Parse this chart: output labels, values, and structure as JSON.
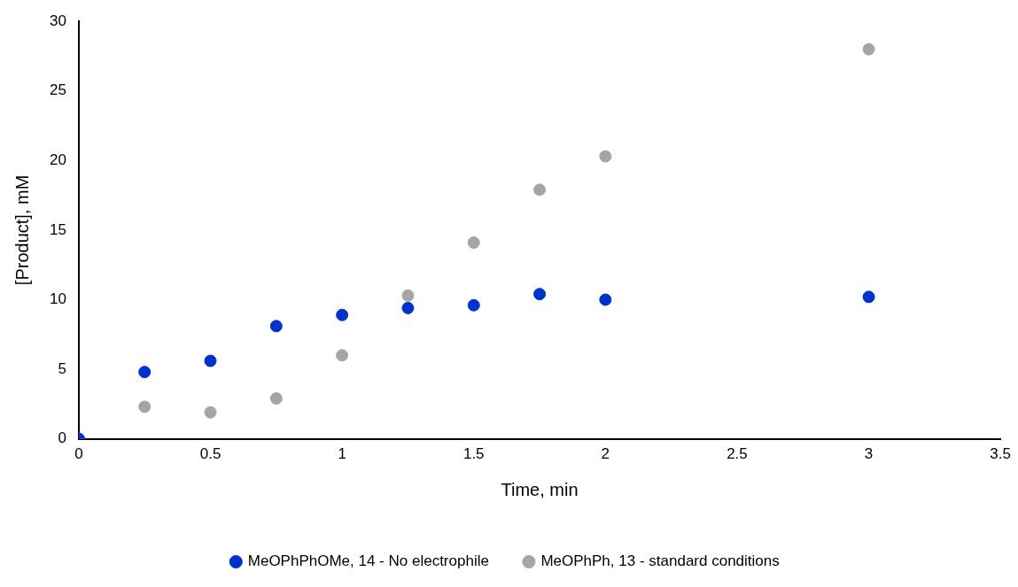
{
  "chart_data": {
    "type": "scatter",
    "xlabel": "Time, min",
    "ylabel": "[Product], mM",
    "xlim": [
      0,
      3.5
    ],
    "xticks": [
      0,
      0.5,
      1,
      1.5,
      2,
      2.5,
      3,
      3.5
    ],
    "ylim": [
      0,
      30
    ],
    "yticks": [
      0,
      5,
      10,
      15,
      20,
      25,
      30
    ],
    "grid": false,
    "legend": "bottom",
    "marker": "circle",
    "series": [
      {
        "name": "MeOPhPhOMe, 14 - No electrophile",
        "color": "#0033cc",
        "x": [
          0,
          0.25,
          0.5,
          0.75,
          1,
          1.25,
          1.5,
          1.75,
          2,
          3
        ],
        "values": [
          0,
          4.8,
          5.6,
          8.1,
          8.9,
          9.4,
          9.6,
          10.4,
          10.0,
          10.2
        ]
      },
      {
        "name": "MeOPhPh, 13 - standard conditions",
        "color": "#a5a5a5",
        "x": [
          0,
          0.25,
          0.5,
          0.75,
          1,
          1.25,
          1.5,
          1.75,
          2,
          3
        ],
        "values": [
          0,
          2.3,
          1.9,
          2.9,
          6.0,
          10.3,
          14.1,
          17.9,
          20.3,
          28.0
        ]
      }
    ]
  }
}
